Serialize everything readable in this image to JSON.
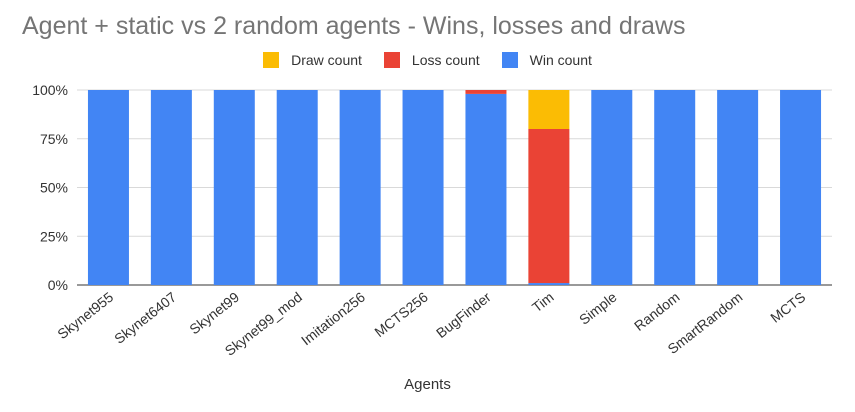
{
  "chart_data": {
    "type": "bar",
    "stacked": true,
    "normalized": true,
    "title": "Agent + static vs 2 random agents - Wins, losses and draws",
    "xlabel": "Agents",
    "ylabel": "",
    "ylim": [
      0,
      100
    ],
    "yticks": [
      "0%",
      "25%",
      "50%",
      "75%",
      "100%"
    ],
    "legend_position": "top",
    "grid": true,
    "categories": [
      "Skynet955",
      "Skynet6407",
      "Skynet99",
      "Skynet99_mod",
      "Imitation256",
      "MCTS256",
      "BugFinder",
      "Tim",
      "Simple",
      "Random",
      "SmartRandom",
      "MCTS"
    ],
    "series": [
      {
        "name": "Win count",
        "color": "#4285f4",
        "values": [
          100,
          100,
          100,
          100,
          100,
          100,
          98,
          1,
          100,
          100,
          100,
          100
        ]
      },
      {
        "name": "Loss count",
        "color": "#ea4335",
        "values": [
          0,
          0,
          0,
          0,
          0,
          0,
          2,
          79,
          0,
          0,
          0,
          0
        ]
      },
      {
        "name": "Draw count",
        "color": "#fbbc04",
        "values": [
          0,
          0,
          0,
          0,
          0,
          0,
          0,
          20,
          0,
          0,
          0,
          0
        ]
      }
    ],
    "legend_order": [
      "Draw count",
      "Loss count",
      "Win count"
    ]
  }
}
